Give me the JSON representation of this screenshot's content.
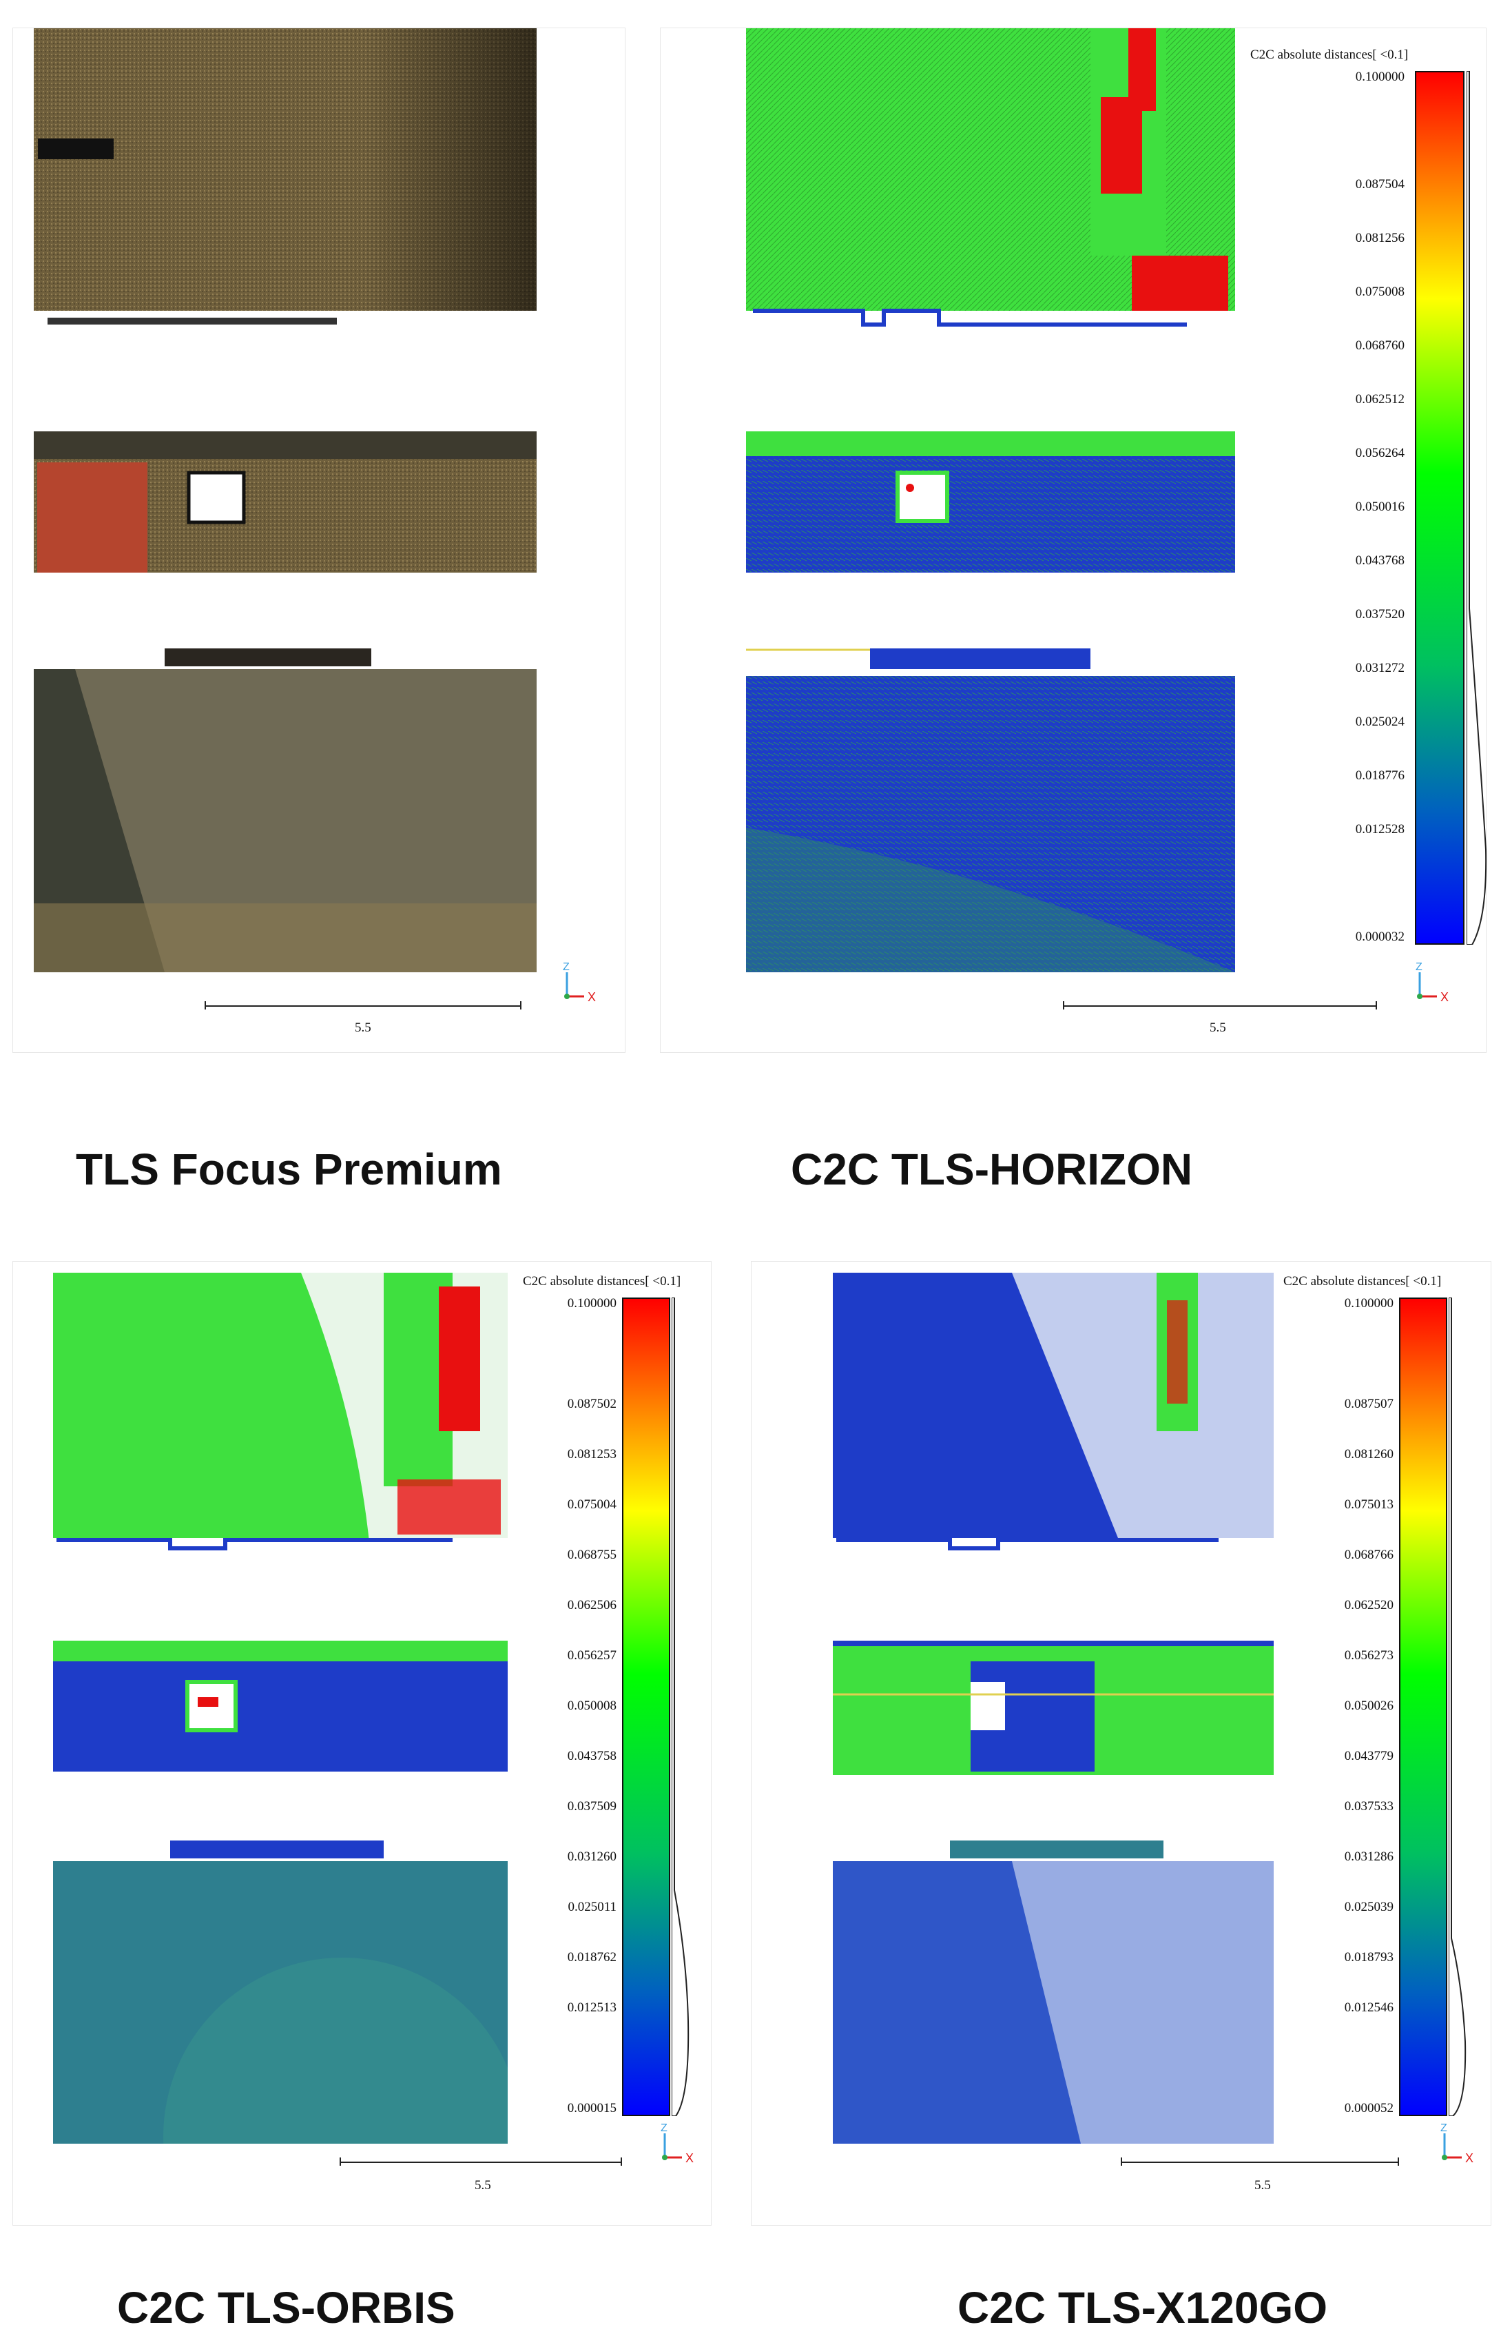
{
  "panels": [
    {
      "id": "focus",
      "caption": "TLS Focus Premium",
      "scale_value": "5.5",
      "has_colorbar": false
    },
    {
      "id": "horizon",
      "caption": "C2C TLS-HORIZON",
      "scale_value": "5.5",
      "has_colorbar": true,
      "sf_title": "C2C absolute distances[ <0.1]",
      "ticks": [
        "0.100000",
        "0.087504",
        "0.081256",
        "0.075008",
        "0.068760",
        "0.062512",
        "0.056264",
        "0.050016",
        "0.043768",
        "0.037520",
        "0.031272",
        "0.025024",
        "0.018776",
        "0.012528",
        "0.000032"
      ]
    },
    {
      "id": "orbis",
      "caption": "C2C TLS-ORBIS",
      "scale_value": "5.5",
      "has_colorbar": true,
      "sf_title": "C2C absolute distances[ <0.1]",
      "ticks": [
        "0.100000",
        "0.087502",
        "0.081253",
        "0.075004",
        "0.068755",
        "0.062506",
        "0.056257",
        "0.050008",
        "0.043758",
        "0.037509",
        "0.031260",
        "0.025011",
        "0.018762",
        "0.012513",
        "0.000015"
      ]
    },
    {
      "id": "x120go",
      "caption": "C2C TLS-X120GO",
      "scale_value": "5.5",
      "has_colorbar": true,
      "sf_title": "C2C absolute distances[ <0.1]",
      "ticks": [
        "0.100000",
        "0.087507",
        "0.081260",
        "0.075013",
        "0.068766",
        "0.062520",
        "0.056273",
        "0.050026",
        "0.043779",
        "0.037533",
        "0.031286",
        "0.025039",
        "0.018793",
        "0.012546",
        "0.000052"
      ]
    }
  ],
  "axis_labels": {
    "z": "Z",
    "x": "X"
  },
  "colors": {
    "rgb_wall": "#7a6a44",
    "rgb_floor": "#6f6a55",
    "rgb_red": "#b5452e",
    "c2c_green": "#3fe03f",
    "c2c_blue": "#1e3cc8",
    "c2c_teal": "#2e7f8f",
    "c2c_red": "#e81010",
    "axis_green": "#2ea84a",
    "axis_red": "#e02020",
    "axis_blue": "#3aa0e0"
  }
}
